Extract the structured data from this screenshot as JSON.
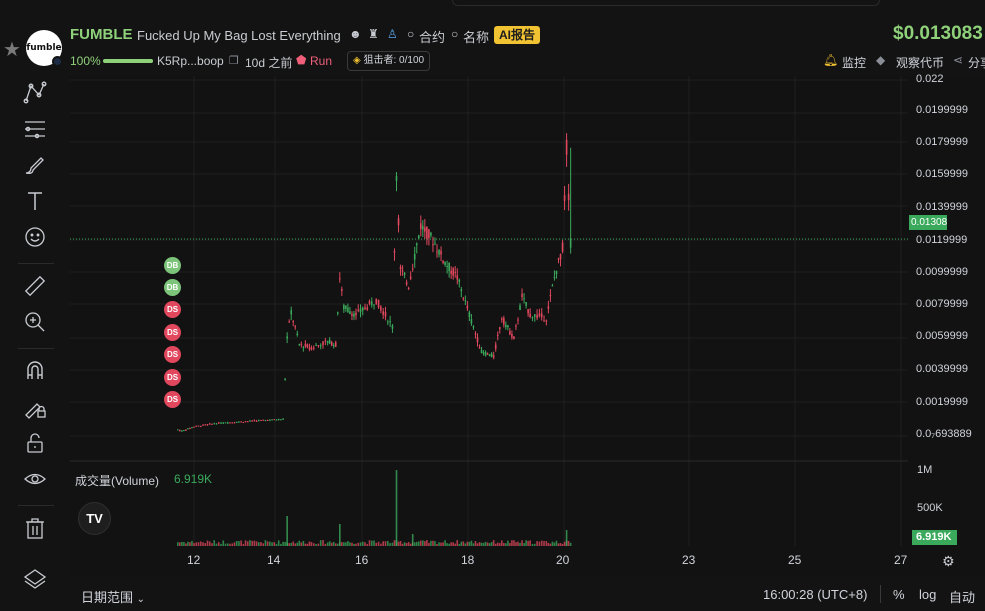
{
  "header": {
    "token_symbol": "FUMBLE",
    "token_name": "Fucked Up My Bag Lost Everything",
    "logo_text": "fumble",
    "contract_label": "合约",
    "name_label": "名称",
    "ai_report_label": "AI报告",
    "price": "$0.013083",
    "progress_text": "100%",
    "progress_fraction": 1.0,
    "address": "K5Rp...boop",
    "age": "10d 之前",
    "run_label": "Run",
    "sniper_label": "狙击者: 0/100",
    "monitor_label": "监控",
    "watch_label": "观察代币",
    "share_label": "分享"
  },
  "toolbar": {
    "tools": [
      "crosshair-lines-icon",
      "fib-levels-icon",
      "brush-icon",
      "text-icon",
      "emoji-icon",
      "ruler-icon",
      "zoom-in-icon",
      "magnet-icon",
      "lock-drawing-icon",
      "unlock-icon",
      "eye-icon",
      "trash-icon",
      "layers-icon"
    ]
  },
  "chart": {
    "current_price_tag": "0.0130837",
    "volume_title": "成交量(Volume)",
    "volume_value": "6.919K",
    "volume_tag": "6.919K",
    "watermark_logo": "TV",
    "markers": [
      "DB",
      "DB",
      "DS",
      "DS",
      "DS",
      "DS",
      "DS"
    ],
    "colors": {
      "up": "#3aa95b",
      "down": "#e1485e",
      "accent": "#8fd17a"
    }
  },
  "chart_data": {
    "type": "candlestick",
    "price_ticks": [
      "0.022",
      "0.0199999",
      "0.0179999",
      "0.0159999",
      "0.0139999",
      "0.0119999",
      "0.0099999",
      "0.0079999",
      "0.0059999",
      "0.0039999",
      "0.0019999",
      "0.0₇693889"
    ],
    "volume_ticks": [
      "1M",
      "500K"
    ],
    "time_ticks": [
      "12",
      "14",
      "16",
      "18",
      "20",
      "23",
      "25",
      "27"
    ],
    "series": [
      {
        "day": 11.6,
        "price": 0.0003
      },
      {
        "day": 11.7,
        "price": 0.0002
      },
      {
        "day": 12.0,
        "price": 0.0005
      },
      {
        "day": 12.5,
        "price": 0.0007
      },
      {
        "day": 13.0,
        "price": 0.0008
      },
      {
        "day": 13.6,
        "price": 0.0009
      },
      {
        "day": 14.2,
        "price": 0.001
      },
      {
        "day": 14.3,
        "price": 0.0065
      },
      {
        "day": 14.4,
        "price": 0.0082
      },
      {
        "day": 14.6,
        "price": 0.006
      },
      {
        "day": 14.9,
        "price": 0.0058
      },
      {
        "day": 15.3,
        "price": 0.0062
      },
      {
        "day": 15.5,
        "price": 0.006
      },
      {
        "day": 15.6,
        "price": 0.0105
      },
      {
        "day": 15.7,
        "price": 0.0085
      },
      {
        "day": 16.0,
        "price": 0.008
      },
      {
        "day": 16.5,
        "price": 0.009
      },
      {
        "day": 16.9,
        "price": 0.0072
      },
      {
        "day": 17.0,
        "price": 0.0175
      },
      {
        "day": 17.1,
        "price": 0.011
      },
      {
        "day": 17.3,
        "price": 0.01
      },
      {
        "day": 17.6,
        "price": 0.014
      },
      {
        "day": 17.9,
        "price": 0.013
      },
      {
        "day": 18.2,
        "price": 0.0115
      },
      {
        "day": 18.5,
        "price": 0.0105
      },
      {
        "day": 18.8,
        "price": 0.008
      },
      {
        "day": 19.1,
        "price": 0.0055
      },
      {
        "day": 19.4,
        "price": 0.0052
      },
      {
        "day": 19.6,
        "price": 0.0078
      },
      {
        "day": 19.9,
        "price": 0.0064
      },
      {
        "day": 20.1,
        "price": 0.0092
      },
      {
        "day": 20.3,
        "price": 0.008
      },
      {
        "day": 20.7,
        "price": 0.0078
      },
      {
        "day": 20.9,
        "price": 0.0105
      },
      {
        "day": 21.1,
        "price": 0.0125
      },
      {
        "day": 21.2,
        "price": 0.0192
      },
      {
        "day": 21.3,
        "price": 0.0131
      }
    ]
  },
  "bottom": {
    "date_range_label": "日期范围",
    "clock": "16:00:28 (UTC+8)",
    "percent_btn": "%",
    "log_btn": "log",
    "auto_btn": "自动"
  }
}
